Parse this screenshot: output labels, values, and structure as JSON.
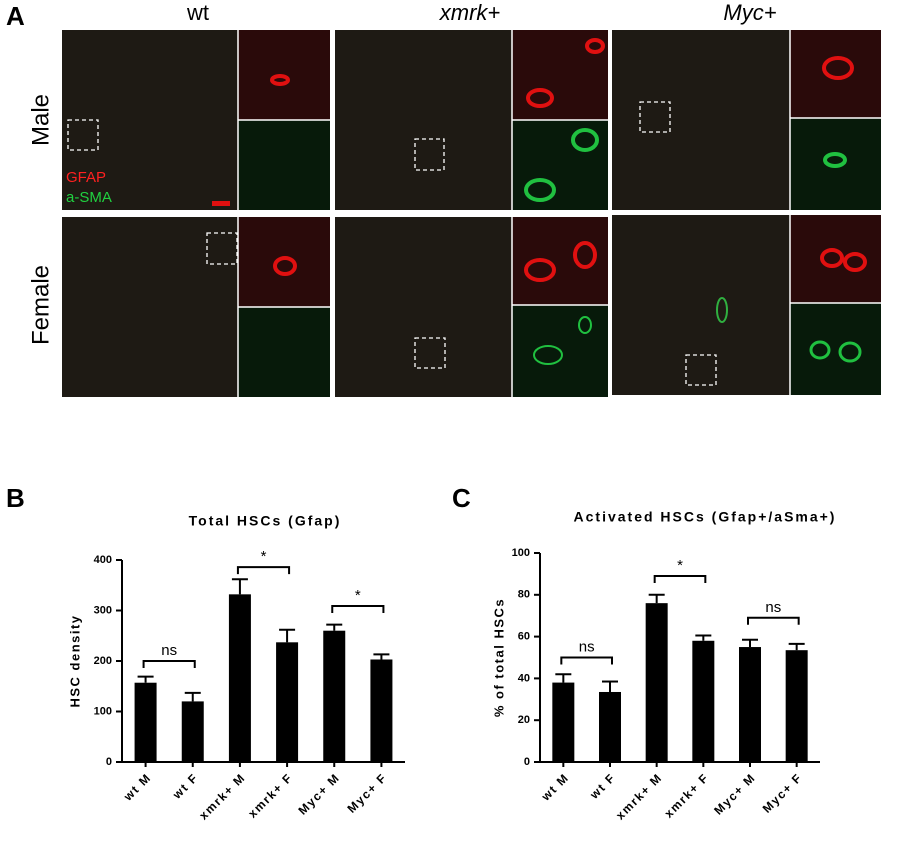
{
  "panel_a": {
    "label": "A",
    "columns": [
      "wt",
      "xmrk+",
      "Myc+"
    ],
    "rows": [
      "Male",
      "Female"
    ],
    "legend": [
      "GFAP",
      "a-SMA"
    ]
  },
  "chart_data": [
    {
      "type": "bar",
      "label": "B",
      "title": "Total HSCs (Gfap)",
      "ylabel": "HSC density",
      "categories": [
        "wt M",
        "wt F",
        "xmrk+ M",
        "xmrk+ F",
        "Myc+ M",
        "Myc+ F"
      ],
      "values": [
        157,
        120,
        332,
        237,
        260,
        203
      ],
      "errors": [
        12,
        17,
        30,
        25,
        12,
        10
      ],
      "color": "#000000",
      "ylim": [
        0,
        400
      ],
      "yticks": [
        0,
        100,
        200,
        300,
        400
      ],
      "annotations": [
        {
          "text": "ns",
          "from": 0,
          "to": 1,
          "y": 200
        },
        {
          "text": "*",
          "from": 2,
          "to": 3,
          "y": 386
        },
        {
          "text": "*",
          "from": 4,
          "to": 5,
          "y": 309
        }
      ]
    },
    {
      "type": "bar",
      "label": "C",
      "title": "Activated HSCs (Gfap+/aSma+)",
      "ylabel": "% of total HSCs",
      "categories": [
        "wt M",
        "wt F",
        "xmrk+ M",
        "xmrk+ F",
        "Myc+ M",
        "Myc+ F"
      ],
      "values": [
        38,
        33.5,
        76,
        58,
        55,
        53.5
      ],
      "errors": [
        4,
        5,
        4,
        2.5,
        3.5,
        3
      ],
      "color": "#000000",
      "ylim": [
        0,
        100
      ],
      "yticks": [
        0,
        20,
        40,
        60,
        80,
        100
      ],
      "annotations": [
        {
          "text": "ns",
          "from": 0,
          "to": 1,
          "y": 50
        },
        {
          "text": "*",
          "from": 2,
          "to": 3,
          "y": 89
        },
        {
          "text": "ns",
          "from": 4,
          "to": 5,
          "y": 69
        }
      ]
    }
  ]
}
